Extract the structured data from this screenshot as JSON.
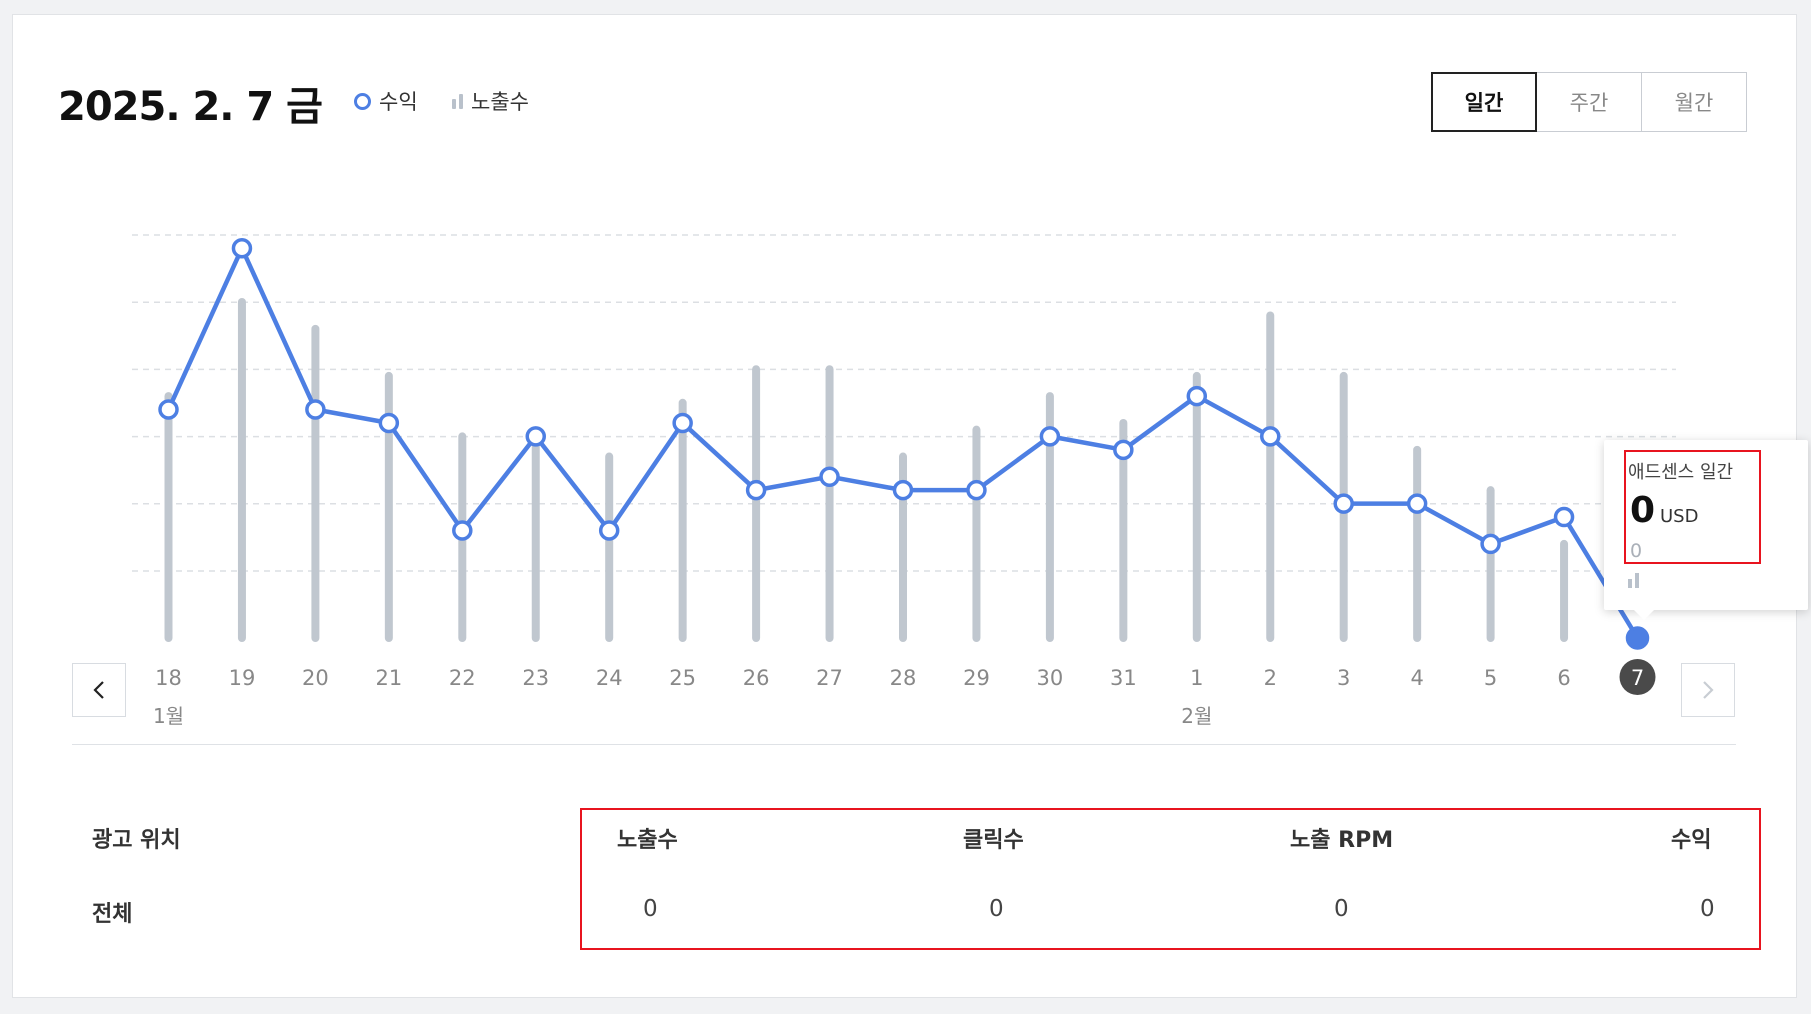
{
  "header": {
    "date_title": "2025. 2. 7 금",
    "legend_revenue": "수익",
    "legend_impressions": "노출수"
  },
  "period_tabs": [
    "일간",
    "주간",
    "월간"
  ],
  "period_selected": "일간",
  "nav": {
    "prev_icon": "chevron-left-icon",
    "next_icon": "chevron-right-icon",
    "next_enabled": false
  },
  "chart_data": {
    "type": "line",
    "x": [
      "18",
      "19",
      "20",
      "21",
      "22",
      "23",
      "24",
      "25",
      "26",
      "27",
      "28",
      "29",
      "30",
      "31",
      "1",
      "2",
      "3",
      "4",
      "5",
      "6",
      "7"
    ],
    "month_labels": [
      {
        "index": 0,
        "label": "1월"
      },
      {
        "index": 14,
        "label": "2월"
      }
    ],
    "selected_index": 20,
    "series": [
      {
        "name": "수익",
        "kind": "line",
        "color": "#4d7fe3",
        "values": [
          3.4,
          5.8,
          3.4,
          3.2,
          1.6,
          3.0,
          1.6,
          3.2,
          2.2,
          2.4,
          2.2,
          2.2,
          3.0,
          2.8,
          3.6,
          3.0,
          2.0,
          2.0,
          1.4,
          1.8,
          0
        ]
      },
      {
        "name": "노출수",
        "kind": "bar",
        "color": "#c0c7cf",
        "values": [
          3.6,
          5.0,
          4.6,
          3.9,
          3.0,
          2.9,
          2.7,
          3.5,
          4.0,
          4.0,
          2.7,
          3.1,
          3.6,
          3.2,
          3.9,
          4.8,
          3.9,
          2.8,
          2.2,
          1.4,
          0
        ]
      }
    ],
    "grid": true,
    "legend": "top-left"
  },
  "tooltip": {
    "title": "애드센스 일간",
    "value": "0",
    "unit": "USD",
    "sub_value": "0"
  },
  "table": {
    "headers": [
      "광고 위치",
      "노출수",
      "클릭수",
      "노출 RPM",
      "수익"
    ],
    "rows": [
      [
        "전체",
        "0",
        "0",
        "0",
        "0"
      ]
    ]
  }
}
